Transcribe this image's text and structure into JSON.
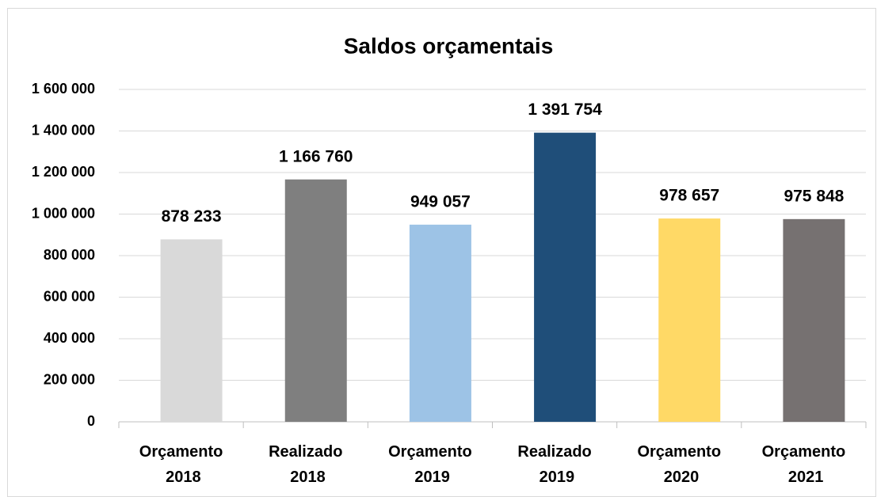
{
  "chart_data": {
    "type": "bar",
    "title": "Saldos orçamentais",
    "categories": [
      "Orçamento 2018",
      "Realizado 2018",
      "Orçamento 2019",
      "Realizado 2019",
      "Orçamento 2020",
      "Orçamento 2021"
    ],
    "values": [
      878233,
      1166760,
      949057,
      1391754,
      978657,
      975848
    ],
    "value_labels": [
      "878 233",
      "1 166 760",
      "949 057",
      "1 391 754",
      "978 657",
      "975 848"
    ],
    "colors": [
      "#d9d9d9",
      "#7f7f7f",
      "#9dc3e6",
      "#1f4e79",
      "#ffd966",
      "#767171"
    ],
    "ylim": [
      0,
      1600000
    ],
    "yticks": [
      0,
      {
        "value": 200000,
        "label": "200 000"
      },
      {
        "value": 400000,
        "label": "400 000"
      },
      {
        "value": 600000,
        "label": "600 000"
      },
      {
        "value": 800000,
        "label": "800 000"
      },
      {
        "value": 1000000,
        "label": "1 000 000"
      },
      {
        "value": 1200000,
        "label": "1 200 000"
      },
      {
        "value": 1400000,
        "label": "1 400 000"
      },
      {
        "value": 1600000,
        "label": "1 600 000"
      }
    ],
    "grid": true
  }
}
